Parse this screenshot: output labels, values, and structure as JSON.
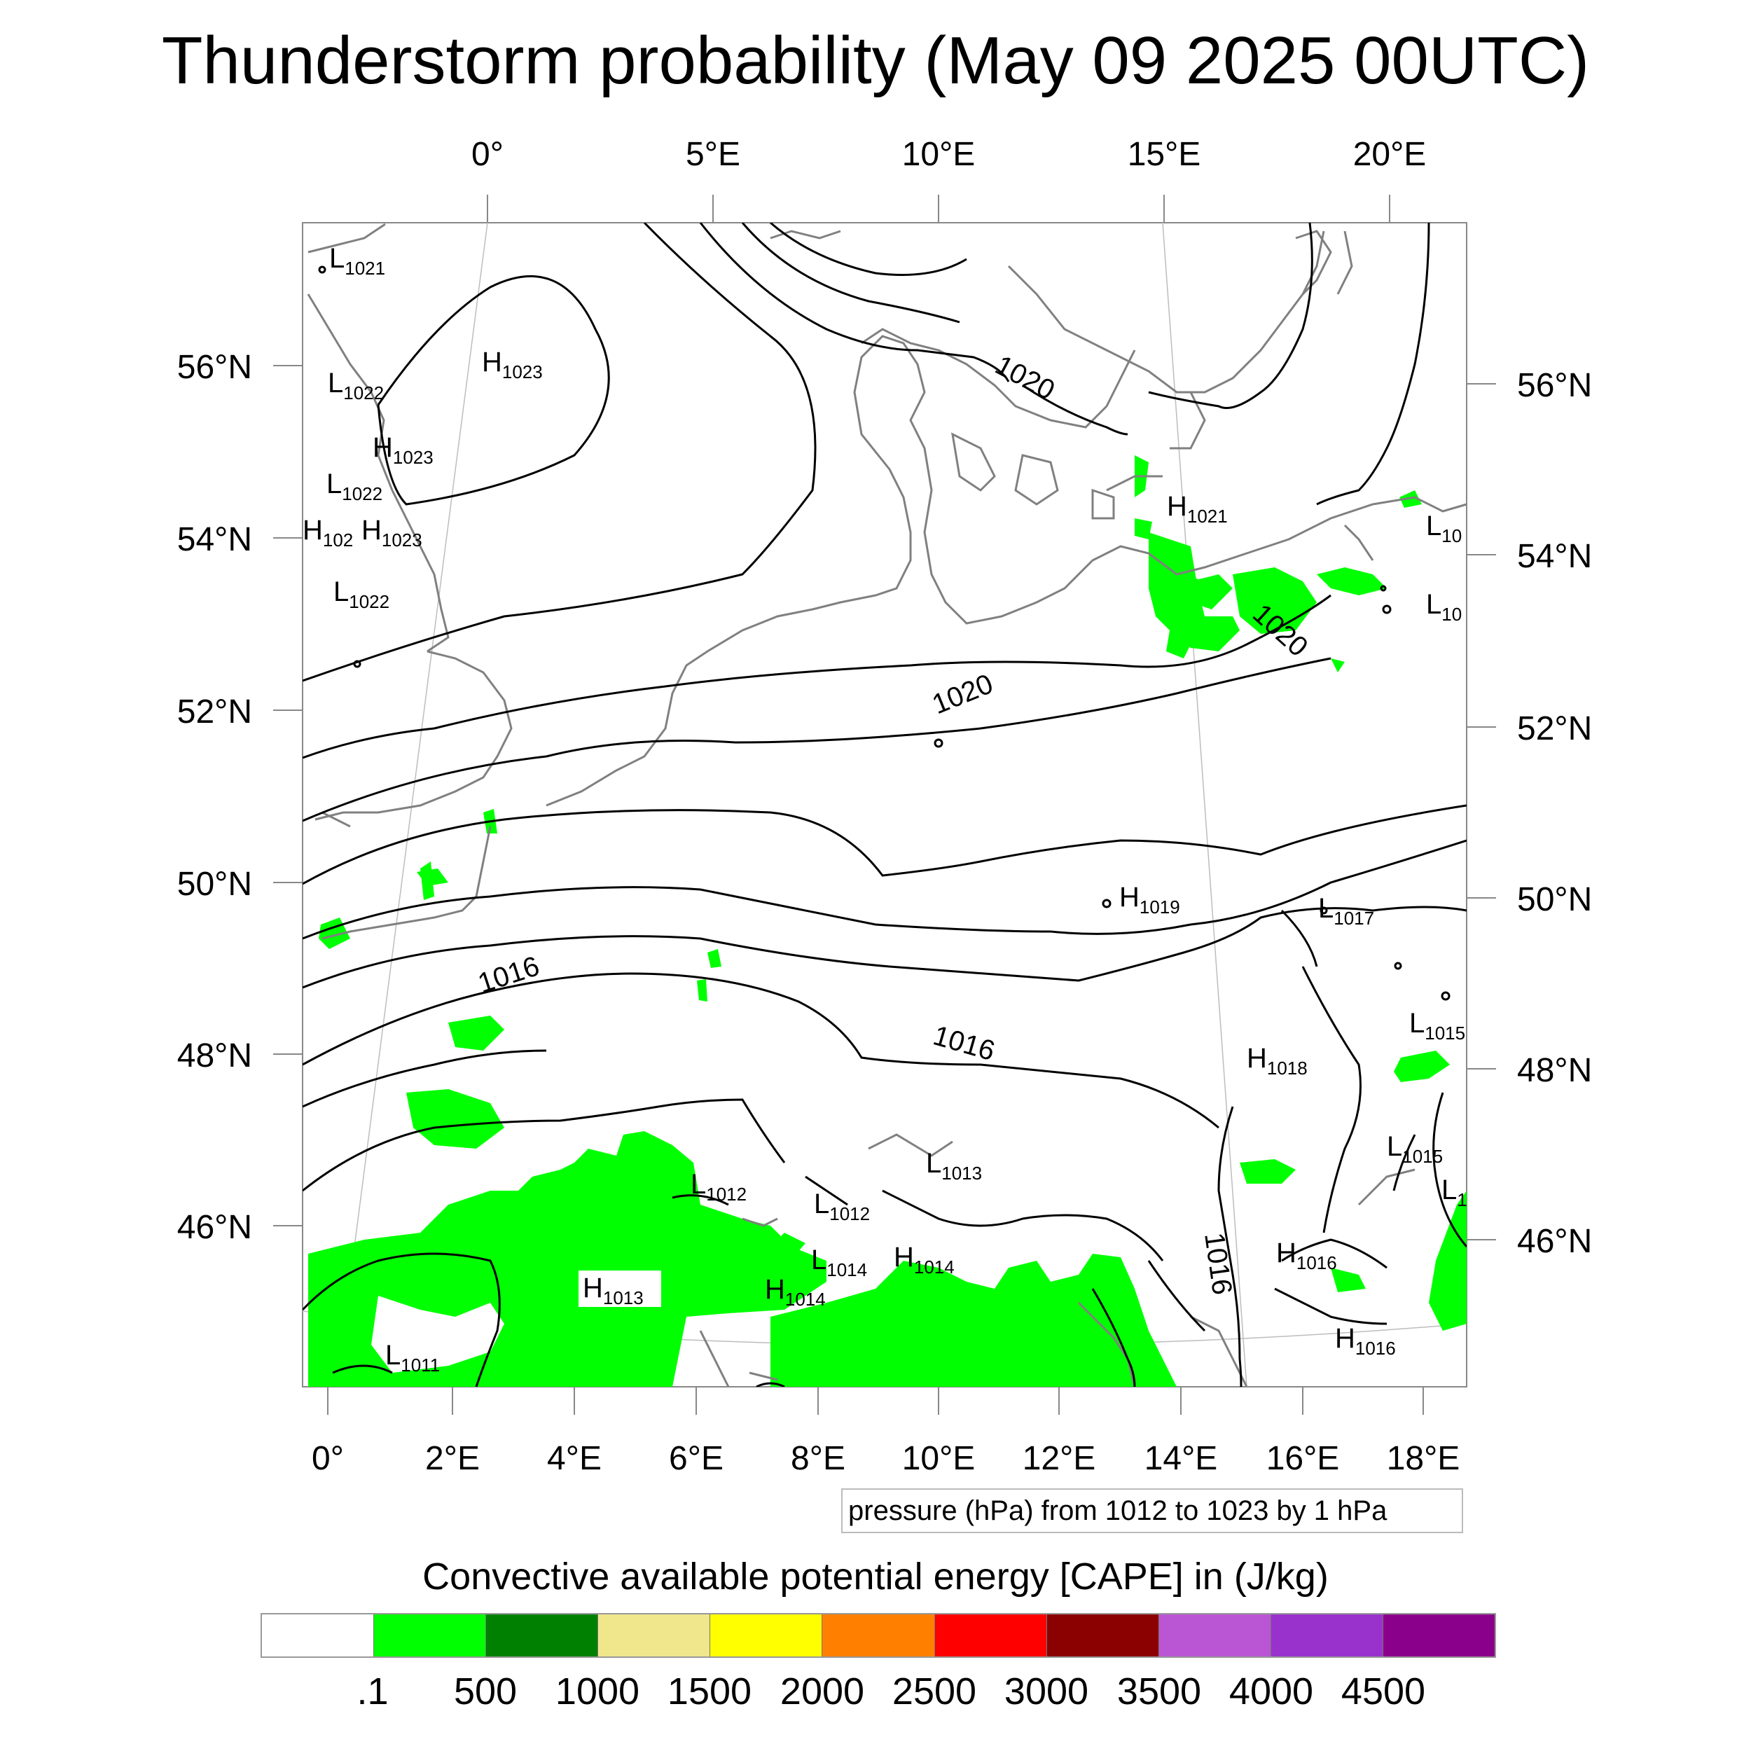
{
  "title": "Thunderstorm probability (May 09 2025 00UTC)",
  "axes": {
    "top_lon_labels": [
      "0°",
      "5°E",
      "10°E",
      "15°E",
      "20°E"
    ],
    "bottom_lon_labels": [
      "0°",
      "2°E",
      "4°E",
      "6°E",
      "8°E",
      "10°E",
      "12°E",
      "14°E",
      "16°E",
      "18°E"
    ],
    "left_lat_labels": [
      "56°N",
      "54°N",
      "52°N",
      "50°N",
      "48°N",
      "46°N"
    ],
    "right_lat_labels": [
      "56°N",
      "54°N",
      "52°N",
      "50°N",
      "48°N",
      "46°N"
    ]
  },
  "pressure_centers": [
    {
      "type": "L",
      "value": "1021"
    },
    {
      "type": "H",
      "value": "1023"
    },
    {
      "type": "L",
      "value": "1022"
    },
    {
      "type": "H",
      "value": "1023"
    },
    {
      "type": "L",
      "value": "1022"
    },
    {
      "type": "H",
      "value": "102"
    },
    {
      "type": "H",
      "value": "1023"
    },
    {
      "type": "L",
      "value": "1022"
    },
    {
      "type": "H",
      "value": "1021"
    },
    {
      "type": "L",
      "value": "10"
    },
    {
      "type": "L",
      "value": "10"
    },
    {
      "type": "H",
      "value": "1019"
    },
    {
      "type": "L",
      "value": "1017"
    },
    {
      "type": "L",
      "value": "1015"
    },
    {
      "type": "H",
      "value": "1018"
    },
    {
      "type": "L",
      "value": "1015"
    },
    {
      "type": "L",
      "value": "1"
    },
    {
      "type": "L",
      "value": "1012"
    },
    {
      "type": "L",
      "value": "1013"
    },
    {
      "type": "L",
      "value": "1012"
    },
    {
      "type": "L",
      "value": "1014"
    },
    {
      "type": "H",
      "value": "1014"
    },
    {
      "type": "H",
      "value": "1014"
    },
    {
      "type": "H",
      "value": "1013"
    },
    {
      "type": "L",
      "value": "1011"
    },
    {
      "type": "H",
      "value": "1016"
    },
    {
      "type": "H",
      "value": "1016"
    }
  ],
  "contour_labels": [
    "1020",
    "1020",
    "1020",
    "1016",
    "1016",
    "1016"
  ],
  "pressure_info": "pressure (hPa) from 1012 to 1023 by 1 hPa",
  "colorbar": {
    "title": "Convective available potential energy [CAPE] in (J/kg)",
    "colors": [
      "#ffffff",
      "#00ff00",
      "#008000",
      "#f0e68c",
      "#ffff00",
      "#ff8000",
      "#ff0000",
      "#8b0000",
      "#ba55d3",
      "#9932cc",
      "#8b008b"
    ],
    "labels": [
      ".1",
      "500",
      "1000",
      "1500",
      "2000",
      "2500",
      "3000",
      "3500",
      "4000",
      "4500"
    ]
  }
}
